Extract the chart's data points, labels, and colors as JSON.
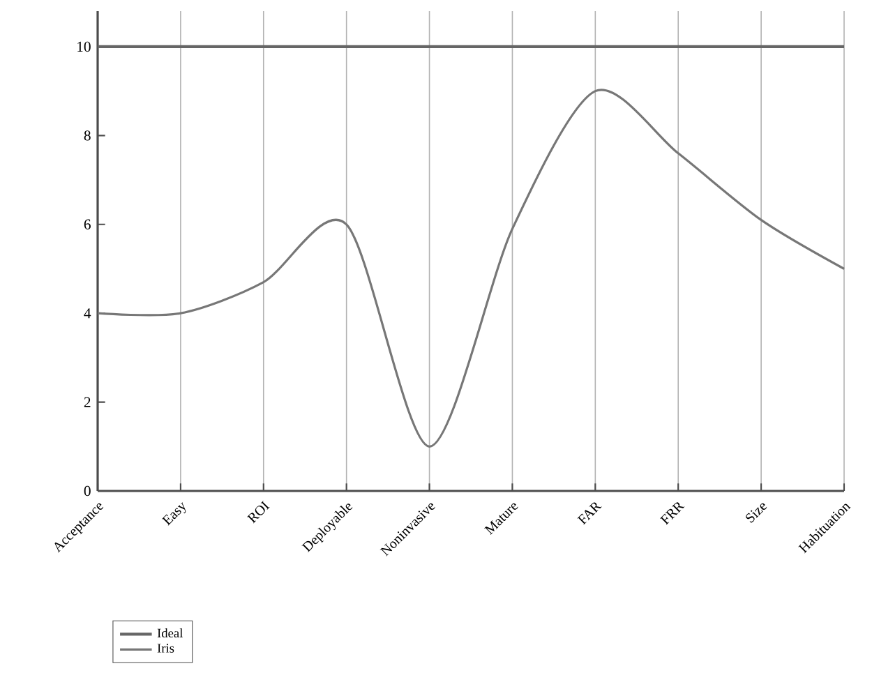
{
  "chart_data": {
    "type": "line",
    "categories": [
      "Acceptance",
      "Easy",
      "ROI",
      "Deployable",
      "Noninvasive",
      "Mature",
      "FAR",
      "FRR",
      "Size",
      "Habituation"
    ],
    "series": [
      {
        "name": "Ideal",
        "color": "#666666",
        "values": [
          10,
          10,
          10,
          10,
          10,
          10,
          10,
          10,
          10,
          10
        ]
      },
      {
        "name": "Iris",
        "color": "#777777",
        "values": [
          4.0,
          4.0,
          4.7,
          6.0,
          1.0,
          5.9,
          9.0,
          7.6,
          6.1,
          5.0
        ]
      }
    ],
    "ylim": [
      0,
      10.8
    ],
    "yticks": [
      0,
      2,
      4,
      6,
      8,
      10
    ],
    "grid": "x",
    "legend": "bottom left",
    "marker": "none",
    "line_style": "solid"
  }
}
